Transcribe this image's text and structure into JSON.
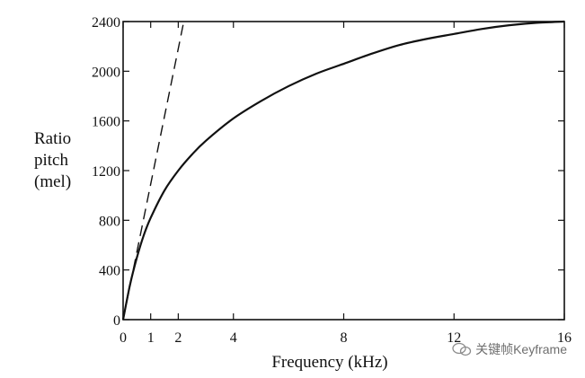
{
  "chart_data": {
    "type": "line",
    "ylabel": [
      "Ratio",
      "pitch",
      "(mel)"
    ],
    "xlabel": "Frequency (kHz)",
    "xlim": [
      0,
      16
    ],
    "ylim": [
      0,
      2400
    ],
    "x_ticks": [
      {
        "value": 0,
        "label": "0"
      },
      {
        "value": 1,
        "label": "1"
      },
      {
        "value": 2,
        "label": "2"
      },
      {
        "value": 4,
        "label": "4"
      },
      {
        "value": 8,
        "label": "8"
      },
      {
        "value": 12,
        "label": "12"
      },
      {
        "value": 16,
        "label": "16"
      }
    ],
    "y_ticks": [
      {
        "value": 0,
        "label": "0"
      },
      {
        "value": 400,
        "label": "400"
      },
      {
        "value": 800,
        "label": "800"
      },
      {
        "value": 1200,
        "label": "1200"
      },
      {
        "value": 1600,
        "label": "1600"
      },
      {
        "value": 2000,
        "label": "2000"
      },
      {
        "value": 2400,
        "label": "2400"
      }
    ],
    "grid": false,
    "series": [
      {
        "style": "solid",
        "x": [
          0,
          0.25,
          0.5,
          0.75,
          1,
          1.5,
          2,
          2.5,
          3,
          4,
          5,
          6,
          7,
          8,
          9,
          10,
          11,
          12,
          13,
          14,
          15,
          16
        ],
        "y": [
          0,
          280,
          500,
          680,
          820,
          1040,
          1200,
          1330,
          1440,
          1620,
          1760,
          1880,
          1980,
          2060,
          2140,
          2210,
          2260,
          2300,
          2340,
          2370,
          2390,
          2400
        ]
      },
      {
        "style": "dashed",
        "x": [
          0,
          2.2
        ],
        "y": [
          0,
          2400
        ]
      }
    ]
  },
  "watermark": {
    "text": "关键帧Keyframe",
    "icon": "chat-bubble-icon"
  }
}
